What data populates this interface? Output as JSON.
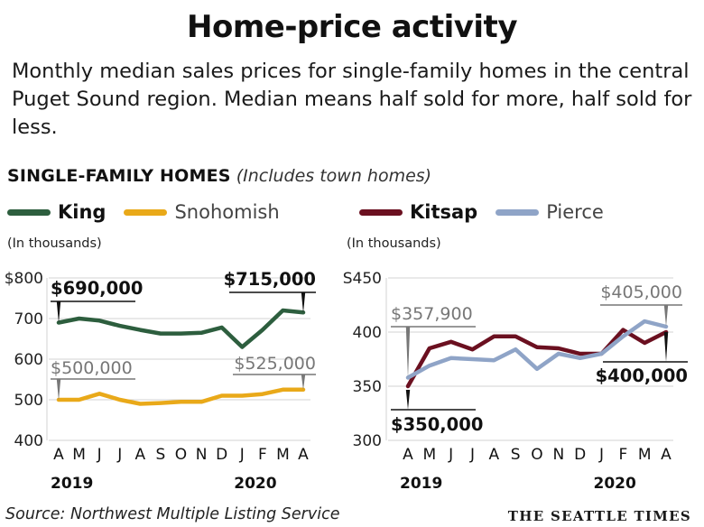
{
  "header": {
    "title": "Home-price activity",
    "subtitle": "Monthly median sales prices for single-family homes in the central Puget Sound region. Median means half sold for more, half sold for less.",
    "section_title": "SINGLE-FAMILY HOMES",
    "section_note": "(Includes town homes)"
  },
  "footer": {
    "source": "Source: Northwest Multiple Listing Service",
    "credit": "THE SEATTLE TIMES"
  },
  "chart_data": [
    {
      "type": "line",
      "units_label": "(In thousands)",
      "categories": [
        "A",
        "M",
        "J",
        "J",
        "A",
        "S",
        "O",
        "N",
        "D",
        "J",
        "F",
        "M",
        "A"
      ],
      "year_labels": [
        {
          "index": 0,
          "label": "2019"
        },
        {
          "index": 9,
          "label": "2020"
        }
      ],
      "ylim": [
        400,
        800
      ],
      "yticks": [
        400,
        500,
        600,
        700,
        800
      ],
      "ytick_labels": [
        "400",
        "500",
        "600",
        "700",
        "$800"
      ],
      "series": [
        {
          "name": "King",
          "color": "#2d5e3e",
          "values": [
            690,
            700,
            695,
            682,
            672,
            663,
            663,
            665,
            678,
            630,
            672,
            720,
            715
          ]
        },
        {
          "name": "Snohomish",
          "color": "#e9a919",
          "values": [
            500,
            500,
            515,
            500,
            490,
            492,
            495,
            495,
            510,
            510,
            514,
            525,
            525
          ]
        }
      ],
      "annotations": [
        {
          "series": 0,
          "index": 0,
          "label": "$690,000",
          "bold": true
        },
        {
          "series": 0,
          "index": 12,
          "label": "$715,000",
          "bold": true
        },
        {
          "series": 1,
          "index": 0,
          "label": "$500,000",
          "bold": false
        },
        {
          "series": 1,
          "index": 12,
          "label": "$525,000",
          "bold": false
        }
      ]
    },
    {
      "type": "line",
      "units_label": "(In thousands)",
      "categories": [
        "A",
        "M",
        "J",
        "J",
        "A",
        "S",
        "O",
        "N",
        "D",
        "J",
        "F",
        "M",
        "A"
      ],
      "year_labels": [
        {
          "index": 0,
          "label": "2019"
        },
        {
          "index": 9,
          "label": "2020"
        }
      ],
      "ylim": [
        300,
        450
      ],
      "yticks": [
        300,
        350,
        400,
        450
      ],
      "ytick_labels": [
        "300",
        "350",
        "400",
        "S450"
      ],
      "series": [
        {
          "name": "Kitsap",
          "color": "#6b1020",
          "values": [
            350,
            385,
            391,
            384,
            396,
            396,
            386,
            385,
            380,
            380,
            402,
            390,
            400
          ]
        },
        {
          "name": "Pierce",
          "color": "#8fa4c7",
          "values": [
            357.9,
            369,
            376,
            375,
            374,
            384,
            366,
            380,
            376,
            380,
            396,
            410,
            405
          ]
        }
      ],
      "annotations": [
        {
          "series": 1,
          "index": 0,
          "label": "$357,900",
          "bold": false
        },
        {
          "series": 1,
          "index": 12,
          "label": "$405,000",
          "bold": false
        },
        {
          "series": 0,
          "index": 0,
          "label": "$350,000",
          "bold": true
        },
        {
          "series": 0,
          "index": 12,
          "label": "$400,000",
          "bold": true
        }
      ]
    }
  ]
}
